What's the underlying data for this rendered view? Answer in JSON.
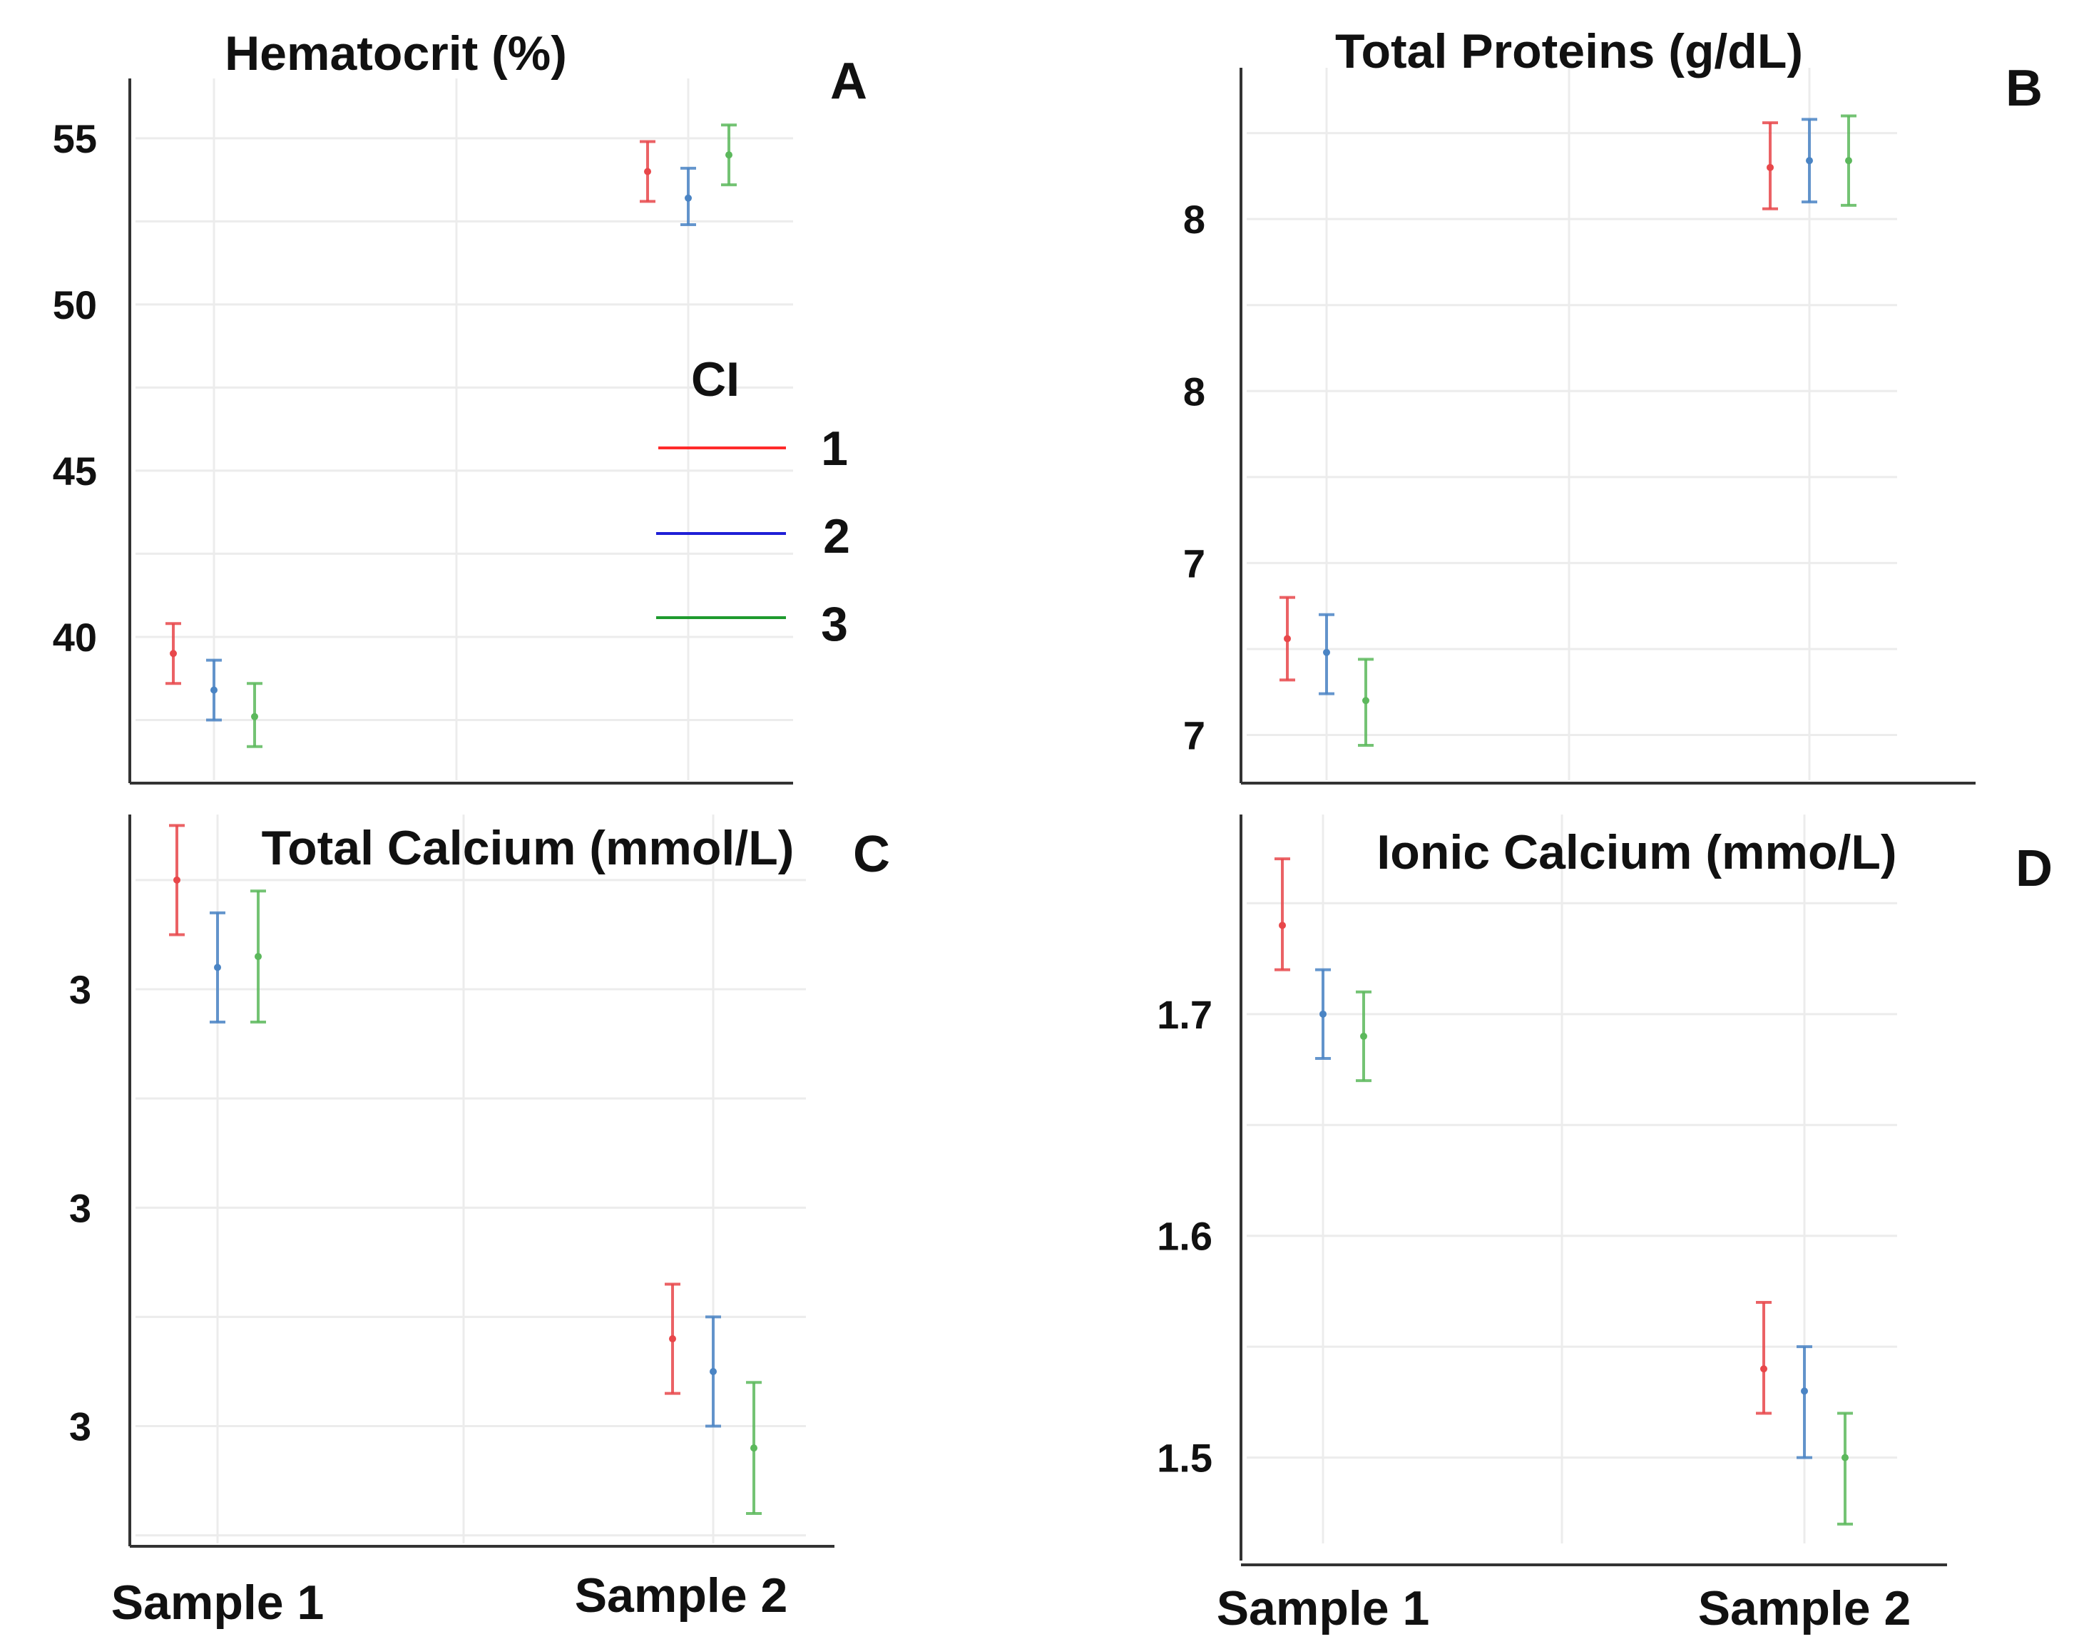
{
  "chart_data": [
    {
      "panel": "A",
      "type": "errorbar",
      "title": "Hematocrit (%)",
      "categories": [
        "Sample 1",
        "Sample 2"
      ],
      "show_x_labels": false,
      "yticks": [
        40,
        45,
        50,
        55
      ],
      "ylim": [
        35.6,
        56.8
      ],
      "grid": true,
      "series": [
        {
          "name": "1",
          "color": "#e8474a",
          "means": [
            39.5,
            54.0
          ],
          "lower": [
            38.6,
            53.1
          ],
          "upper": [
            40.4,
            54.9
          ]
        },
        {
          "name": "2",
          "color": "#4a84c4",
          "means": [
            38.4,
            53.2
          ],
          "lower": [
            37.5,
            52.4
          ],
          "upper": [
            39.3,
            54.1
          ]
        },
        {
          "name": "3",
          "color": "#5cb85c",
          "means": [
            37.6,
            54.5
          ],
          "lower": [
            36.7,
            53.6
          ],
          "upper": [
            38.6,
            55.4
          ]
        }
      ]
    },
    {
      "panel": "B",
      "type": "errorbar",
      "title": "Total Proteins (g/dL)",
      "categories": [
        "Sample 1",
        "Sample 2"
      ],
      "show_x_labels": false,
      "yticks": [
        6.5,
        7.0,
        7.5,
        8.0
      ],
      "ylim": [
        6.36,
        8.44
      ],
      "grid": true,
      "series": [
        {
          "name": "1",
          "color": "#e8474a",
          "means": [
            6.78,
            8.15
          ],
          "lower": [
            6.66,
            8.03
          ],
          "upper": [
            6.9,
            8.28
          ]
        },
        {
          "name": "2",
          "color": "#4a84c4",
          "means": [
            6.74,
            8.17
          ],
          "lower": [
            6.62,
            8.05
          ],
          "upper": [
            6.85,
            8.29
          ]
        },
        {
          "name": "3",
          "color": "#5cb85c",
          "means": [
            6.6,
            8.17
          ],
          "lower": [
            6.47,
            8.04
          ],
          "upper": [
            6.72,
            8.3
          ]
        }
      ]
    },
    {
      "panel": "C",
      "type": "errorbar",
      "title": "Total Calcium (mmol/L)",
      "categories": [
        "Sample 1",
        "Sample 2"
      ],
      "show_x_labels": true,
      "yticks": [
        2.8,
        3.0,
        3.2
      ],
      "ylim": [
        2.69,
        3.36
      ],
      "grid": true,
      "series": [
        {
          "name": "1",
          "color": "#e8474a",
          "means": [
            3.3,
            2.88
          ],
          "lower": [
            3.25,
            2.83
          ],
          "upper": [
            3.35,
            2.93
          ]
        },
        {
          "name": "2",
          "color": "#4a84c4",
          "means": [
            3.22,
            2.85
          ],
          "lower": [
            3.17,
            2.8
          ],
          "upper": [
            3.27,
            2.9
          ]
        },
        {
          "name": "3",
          "color": "#5cb85c",
          "means": [
            3.23,
            2.78
          ],
          "lower": [
            3.17,
            2.72
          ],
          "upper": [
            3.29,
            2.84
          ]
        }
      ]
    },
    {
      "panel": "D",
      "type": "errorbar",
      "title": "Ionic Calcium (mmo/L)",
      "categories": [
        "Sample 1",
        "Sample 2"
      ],
      "show_x_labels": true,
      "yticks": [
        1.5,
        1.6,
        1.7
      ],
      "ylim": [
        1.46,
        1.79
      ],
      "grid": true,
      "series": [
        {
          "name": "1",
          "color": "#e8474a",
          "means": [
            1.74,
            1.54
          ],
          "lower": [
            1.72,
            1.52
          ],
          "upper": [
            1.77,
            1.57
          ]
        },
        {
          "name": "2",
          "color": "#4a84c4",
          "means": [
            1.7,
            1.53
          ],
          "lower": [
            1.68,
            1.5
          ],
          "upper": [
            1.72,
            1.55
          ]
        },
        {
          "name": "3",
          "color": "#5cb85c",
          "means": [
            1.69,
            1.5
          ],
          "lower": [
            1.67,
            1.47
          ],
          "upper": [
            1.71,
            1.52
          ]
        }
      ]
    }
  ],
  "legend": {
    "title": "CI",
    "items": [
      {
        "label": "1",
        "color": "#ff2a2a"
      },
      {
        "label": "2",
        "color": "#1f1fd6"
      },
      {
        "label": "3",
        "color": "#1e9a2e"
      }
    ]
  }
}
